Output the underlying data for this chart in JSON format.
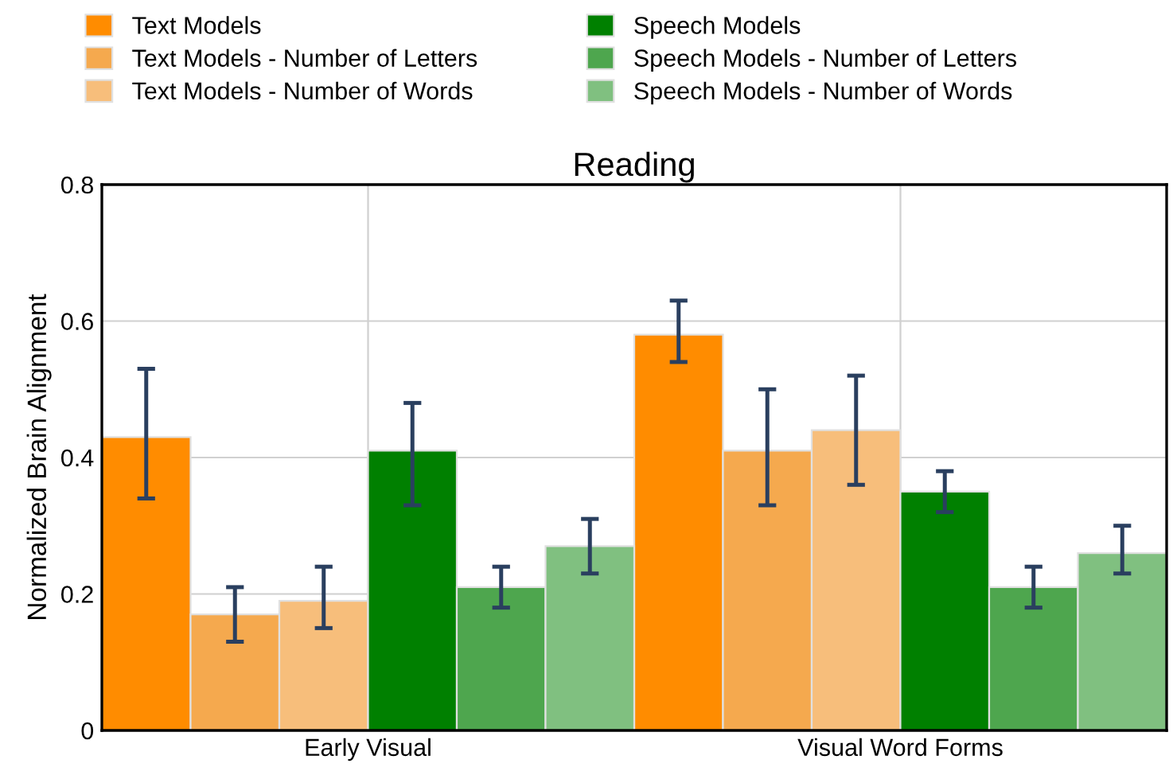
{
  "chart_data": {
    "type": "bar",
    "title": "Reading",
    "ylabel": "Normalized Brain Alignment",
    "categories": [
      "Early Visual",
      "Visual Word Forms"
    ],
    "series": [
      {
        "name": "Text Models",
        "color": "#ff8c00",
        "values": [
          0.43,
          0.58
        ],
        "errors": [
          [
            0.34,
            0.53
          ],
          [
            0.54,
            0.63
          ]
        ]
      },
      {
        "name": "Text Models - Number of Letters",
        "color": "#f5a94e",
        "values": [
          0.17,
          0.41
        ],
        "errors": [
          [
            0.13,
            0.21
          ],
          [
            0.33,
            0.5
          ]
        ]
      },
      {
        "name": "Text Models - Number of Words",
        "color": "#f7be7b",
        "values": [
          0.19,
          0.44
        ],
        "errors": [
          [
            0.15,
            0.24
          ],
          [
            0.36,
            0.52
          ]
        ]
      },
      {
        "name": "Speech Models",
        "color": "#008000",
        "values": [
          0.41,
          0.35
        ],
        "errors": [
          [
            0.33,
            0.48
          ],
          [
            0.32,
            0.38
          ]
        ]
      },
      {
        "name": "Speech Models - Number of Letters",
        "color": "#4ea64e",
        "values": [
          0.21,
          0.21
        ],
        "errors": [
          [
            0.18,
            0.24
          ],
          [
            0.18,
            0.24
          ]
        ]
      },
      {
        "name": "Speech Models - Number of Words",
        "color": "#80c080",
        "values": [
          0.27,
          0.26
        ],
        "errors": [
          [
            0.23,
            0.31
          ],
          [
            0.23,
            0.3
          ]
        ]
      }
    ],
    "ylim": [
      0,
      0.8
    ],
    "yticks": [
      0,
      0.2,
      0.4,
      0.6,
      0.8
    ],
    "grid": true,
    "legend": "top"
  }
}
